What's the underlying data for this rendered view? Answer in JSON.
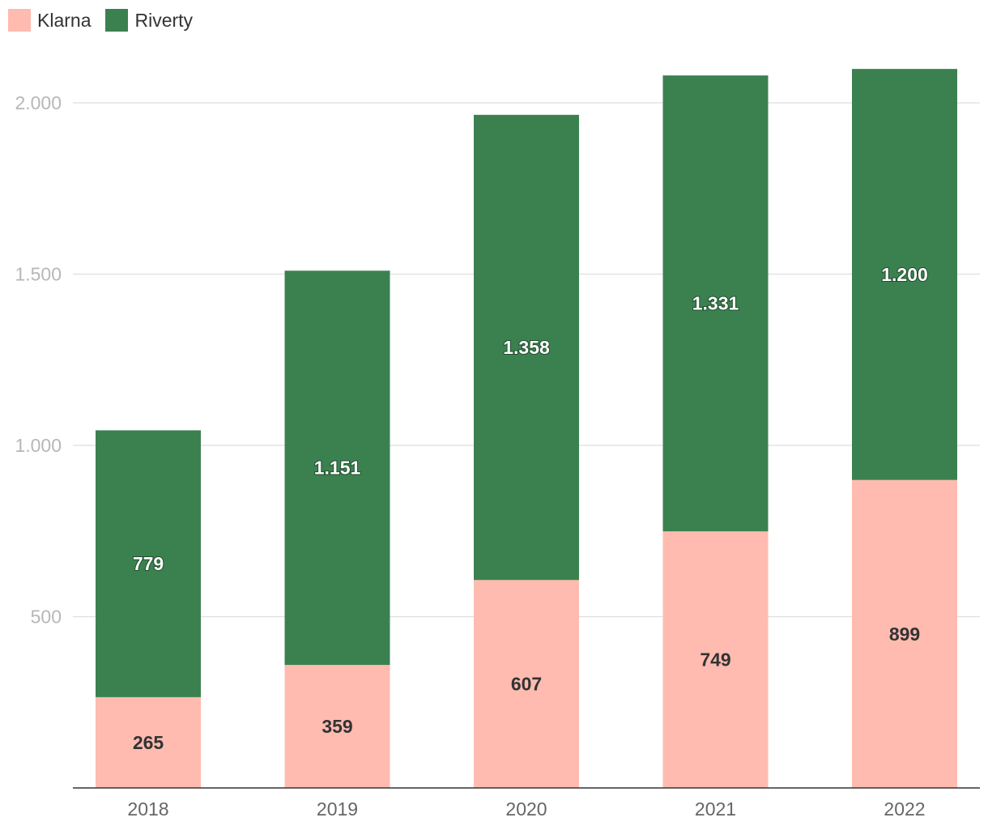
{
  "legend": [
    {
      "name": "Klarna",
      "color": "#ffbbb0"
    },
    {
      "name": "Riverty",
      "color": "#3b8150"
    }
  ],
  "chart_data": {
    "type": "bar",
    "stacked": true,
    "categories": [
      "2018",
      "2019",
      "2020",
      "2021",
      "2022"
    ],
    "series": [
      {
        "name": "Klarna",
        "color": "#ffbbb0",
        "values": [
          265,
          359,
          607,
          749,
          899
        ],
        "labels": [
          "265",
          "359",
          "607",
          "749",
          "899"
        ]
      },
      {
        "name": "Riverty",
        "color": "#3b8150",
        "values": [
          779,
          1151,
          1358,
          1331,
          1200
        ],
        "labels": [
          "779",
          "1.151",
          "1.358",
          "1.331",
          "1.200"
        ]
      }
    ],
    "y_ticks": [
      {
        "value": 500,
        "label": "500"
      },
      {
        "value": 1000,
        "label": "1.000"
      },
      {
        "value": 1500,
        "label": "1.500"
      },
      {
        "value": 2000,
        "label": "2.000"
      }
    ],
    "ylim": [
      0,
      2100
    ],
    "grid": true,
    "title": "",
    "xlabel": "",
    "ylabel": "",
    "legend_position": "top-left"
  }
}
